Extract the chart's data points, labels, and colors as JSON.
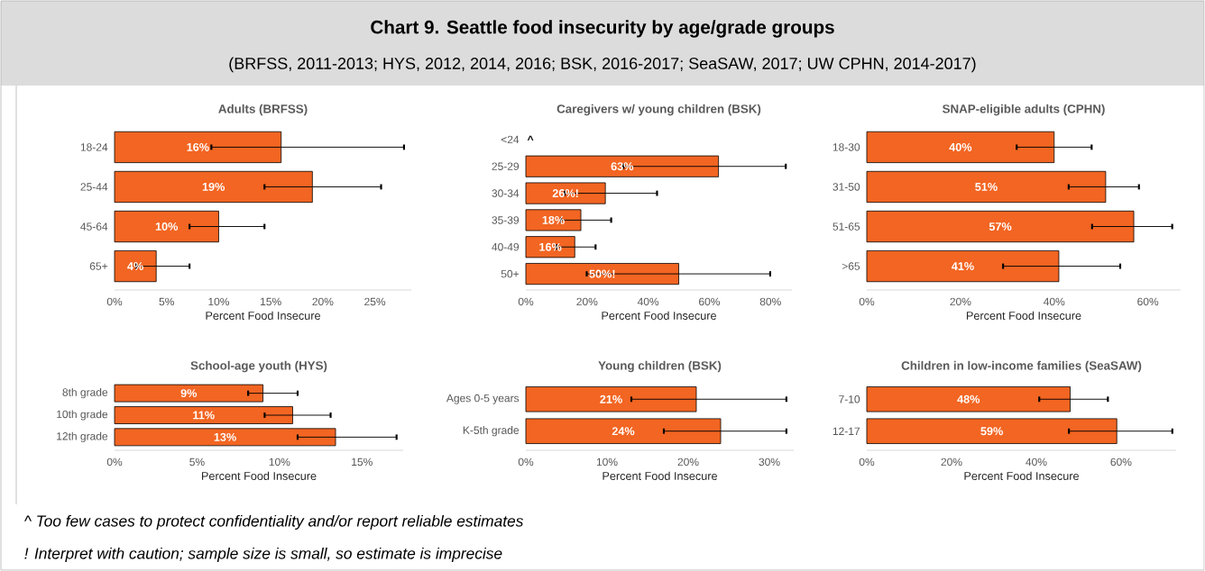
{
  "chart_data": [
    {
      "type": "other",
      "title": "Chart 9. Seattle food insecurity by age/grade groups",
      "subtitle": "(BRFSS, 2011-2013; HYS, 2012, 2014, 2016; BSK, 2016-2017; SeaSAW, 2017; UW CPHN, 2014-2017)",
      "annotations": [
        "^ Too few cases to protect confidentiality and/or report reliable estimates",
        "! Interpret with caution; sample size is small, so estimate is imprecise"
      ]
    },
    {
      "type": "bar",
      "orientation": "horizontal",
      "title": "Adults (BRFSS)",
      "xlabel": "Percent Food Insecure",
      "categories": [
        "18-24",
        "25-44",
        "45-64",
        "65+"
      ],
      "values": [
        16,
        19,
        10,
        4
      ],
      "value_labels": [
        "16%",
        "19%",
        "10%",
        "4%"
      ],
      "errors": [
        [
          9.3,
          27.8
        ],
        [
          14.4,
          25.6
        ],
        [
          7.2,
          14.4
        ],
        [
          2.1,
          7.2
        ]
      ],
      "color": "#f26522",
      "xlim": [
        0,
        28.5
      ],
      "xticks": [
        {
          "value": 0,
          "label": "0%"
        },
        {
          "value": 5,
          "label": "5%"
        },
        {
          "value": 10,
          "label": "10%"
        },
        {
          "value": 15,
          "label": "15%"
        },
        {
          "value": 20,
          "label": "20%"
        },
        {
          "value": 25,
          "label": "25%"
        }
      ]
    },
    {
      "type": "bar",
      "orientation": "horizontal",
      "title": "Caregivers w/ young children (BSK)",
      "xlabel": "Percent Food Insecure",
      "categories": [
        "<24",
        "25-29",
        "30-34",
        "35-39",
        "40-49",
        "50+"
      ],
      "values": [
        null,
        63,
        26,
        18,
        16,
        50
      ],
      "value_labels": [
        "^",
        "63%",
        "26%!",
        "18%",
        "16%",
        "50%!"
      ],
      "errors": [
        null,
        [
          31.9,
          85
        ],
        [
          12.7,
          42.9
        ],
        [
          11.5,
          27.9
        ],
        [
          10,
          22.8
        ],
        [
          19.9,
          79.9
        ]
      ],
      "color": "#f26522",
      "xlim": [
        0,
        87
      ],
      "xticks": [
        {
          "value": 0,
          "label": "0%"
        },
        {
          "value": 20,
          "label": "20%"
        },
        {
          "value": 40,
          "label": "40%"
        },
        {
          "value": 60,
          "label": "60%"
        },
        {
          "value": 80,
          "label": "80%"
        }
      ]
    },
    {
      "type": "bar",
      "orientation": "horizontal",
      "title": "SNAP-eligible adults (CPHN)",
      "xlabel": "Percent Food Insecure",
      "categories": [
        "18-30",
        "31-50",
        "51-65",
        ">65"
      ],
      "values": [
        40,
        51,
        57,
        41
      ],
      "value_labels": [
        "40%",
        "51%",
        "57%",
        "41%"
      ],
      "errors": [
        [
          32,
          48
        ],
        [
          43.1,
          58.1
        ],
        [
          48.1,
          65.2
        ],
        [
          29.1,
          54.1
        ]
      ],
      "color": "#f26522",
      "xlim": [
        0,
        67
      ],
      "xticks": [
        {
          "value": 0,
          "label": "0%"
        },
        {
          "value": 20,
          "label": "20%"
        },
        {
          "value": 40,
          "label": "40%"
        },
        {
          "value": 60,
          "label": "60%"
        }
      ]
    },
    {
      "type": "bar",
      "orientation": "horizontal",
      "title": "School-age youth (HYS)",
      "xlabel": "Percent Food Insecure",
      "categories": [
        "8th grade",
        "10th grade",
        "12th grade"
      ],
      "values": [
        9,
        10.8,
        13.4
      ],
      "value_labels": [
        "9%",
        "11%",
        "13%"
      ],
      "errors": [
        [
          8.1,
          11.1
        ],
        [
          9.1,
          13.1
        ],
        [
          11.1,
          17.1
        ]
      ],
      "color": "#f26522",
      "xlim": [
        0,
        17.5
      ],
      "xticks": [
        {
          "value": 0,
          "label": "0%"
        },
        {
          "value": 5,
          "label": "5%"
        },
        {
          "value": 10,
          "label": "10%"
        },
        {
          "value": 15,
          "label": "15%"
        }
      ]
    },
    {
      "type": "bar",
      "orientation": "horizontal",
      "title": "Young children (BSK)",
      "xlabel": "Percent Food Insecure",
      "categories": [
        "Ages 0-5 years",
        "K-5th grade"
      ],
      "values": [
        21,
        24
      ],
      "value_labels": [
        "21%",
        "24%"
      ],
      "errors": [
        [
          13,
          32.1
        ],
        [
          17,
          32.1
        ]
      ],
      "color": "#f26522",
      "xlim": [
        0,
        33
      ],
      "xticks": [
        {
          "value": 0,
          "label": "0%"
        },
        {
          "value": 10,
          "label": "10%"
        },
        {
          "value": 20,
          "label": "20%"
        },
        {
          "value": 30,
          "label": "30%"
        }
      ]
    },
    {
      "type": "bar",
      "orientation": "horizontal",
      "title": "Children in low-income families (SeaSAW)",
      "xlabel": "Percent Food Insecure",
      "categories": [
        "7-10",
        "12-17"
      ],
      "values": [
        48,
        59
      ],
      "value_labels": [
        "48%",
        "59%"
      ],
      "errors": [
        [
          40.7,
          56.9
        ],
        [
          47.7,
          72.1
        ]
      ],
      "color": "#f26522",
      "xlim": [
        0,
        73
      ],
      "xticks": [
        {
          "value": 0,
          "label": "0%"
        },
        {
          "value": 20,
          "label": "20%"
        },
        {
          "value": 40,
          "label": "40%"
        },
        {
          "value": 60,
          "label": "60%"
        }
      ]
    }
  ]
}
